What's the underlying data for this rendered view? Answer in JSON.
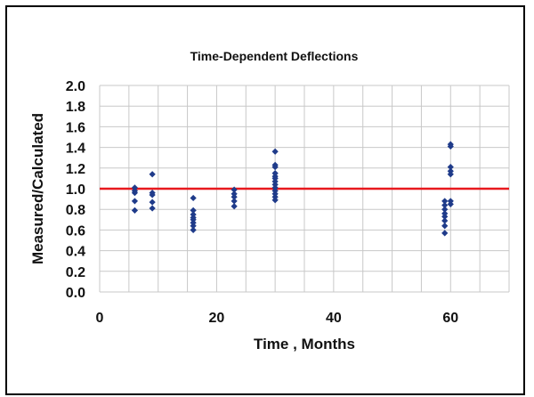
{
  "chart_data": {
    "type": "scatter",
    "title": "Time-Dependent Deflections",
    "xlabel": "Time , Months",
    "ylabel": "Measured/Calculated",
    "xlim": [
      0,
      70
    ],
    "ylim": [
      0,
      2.0
    ],
    "x_ticks": [
      "0",
      "20",
      "40",
      "60"
    ],
    "x_tick_values": [
      0,
      20,
      40,
      60
    ],
    "y_ticks": [
      "0.0",
      "0.2",
      "0.4",
      "0.6",
      "0.8",
      "1.0",
      "1.2",
      "1.4",
      "1.6",
      "1.8",
      "2.0"
    ],
    "y_tick_values": [
      0,
      0.2,
      0.4,
      0.6,
      0.8,
      1.0,
      1.2,
      1.4,
      1.6,
      1.8,
      2.0
    ],
    "grid": true,
    "reference_line": {
      "y": 1.0,
      "color": "#e8191e"
    },
    "marker_color": "#1f3b8a",
    "series": [
      {
        "points": [
          [
            6,
            1.01
          ],
          [
            6,
            0.98
          ],
          [
            6,
            0.96
          ],
          [
            6,
            0.88
          ],
          [
            6,
            0.79
          ],
          [
            9,
            1.14
          ],
          [
            9,
            0.96
          ],
          [
            9,
            0.94
          ],
          [
            9,
            0.87
          ],
          [
            9,
            0.81
          ],
          [
            16,
            0.91
          ],
          [
            16,
            0.79
          ],
          [
            16,
            0.75
          ],
          [
            16,
            0.72
          ],
          [
            16,
            0.7
          ],
          [
            16,
            0.67
          ],
          [
            16,
            0.64
          ],
          [
            16,
            0.6
          ],
          [
            23,
            0.99
          ],
          [
            23,
            0.95
          ],
          [
            23,
            0.92
          ],
          [
            23,
            0.88
          ],
          [
            23,
            0.83
          ],
          [
            30,
            1.36
          ],
          [
            30,
            1.23
          ],
          [
            30,
            1.21
          ],
          [
            30,
            1.15
          ],
          [
            30,
            1.12
          ],
          [
            30,
            1.1
          ],
          [
            30,
            1.07
          ],
          [
            30,
            1.04
          ],
          [
            30,
            1.01
          ],
          [
            30,
            0.98
          ],
          [
            30,
            0.95
          ],
          [
            30,
            0.92
          ],
          [
            30,
            0.89
          ],
          [
            59,
            0.88
          ],
          [
            59,
            0.84
          ],
          [
            59,
            0.8
          ],
          [
            59,
            0.76
          ],
          [
            59,
            0.73
          ],
          [
            59,
            0.69
          ],
          [
            59,
            0.64
          ],
          [
            59,
            0.57
          ],
          [
            60,
            1.43
          ],
          [
            60,
            1.41
          ],
          [
            60,
            1.21
          ],
          [
            60,
            1.17
          ],
          [
            60,
            1.14
          ],
          [
            60,
            0.88
          ],
          [
            60,
            0.85
          ]
        ]
      }
    ]
  }
}
